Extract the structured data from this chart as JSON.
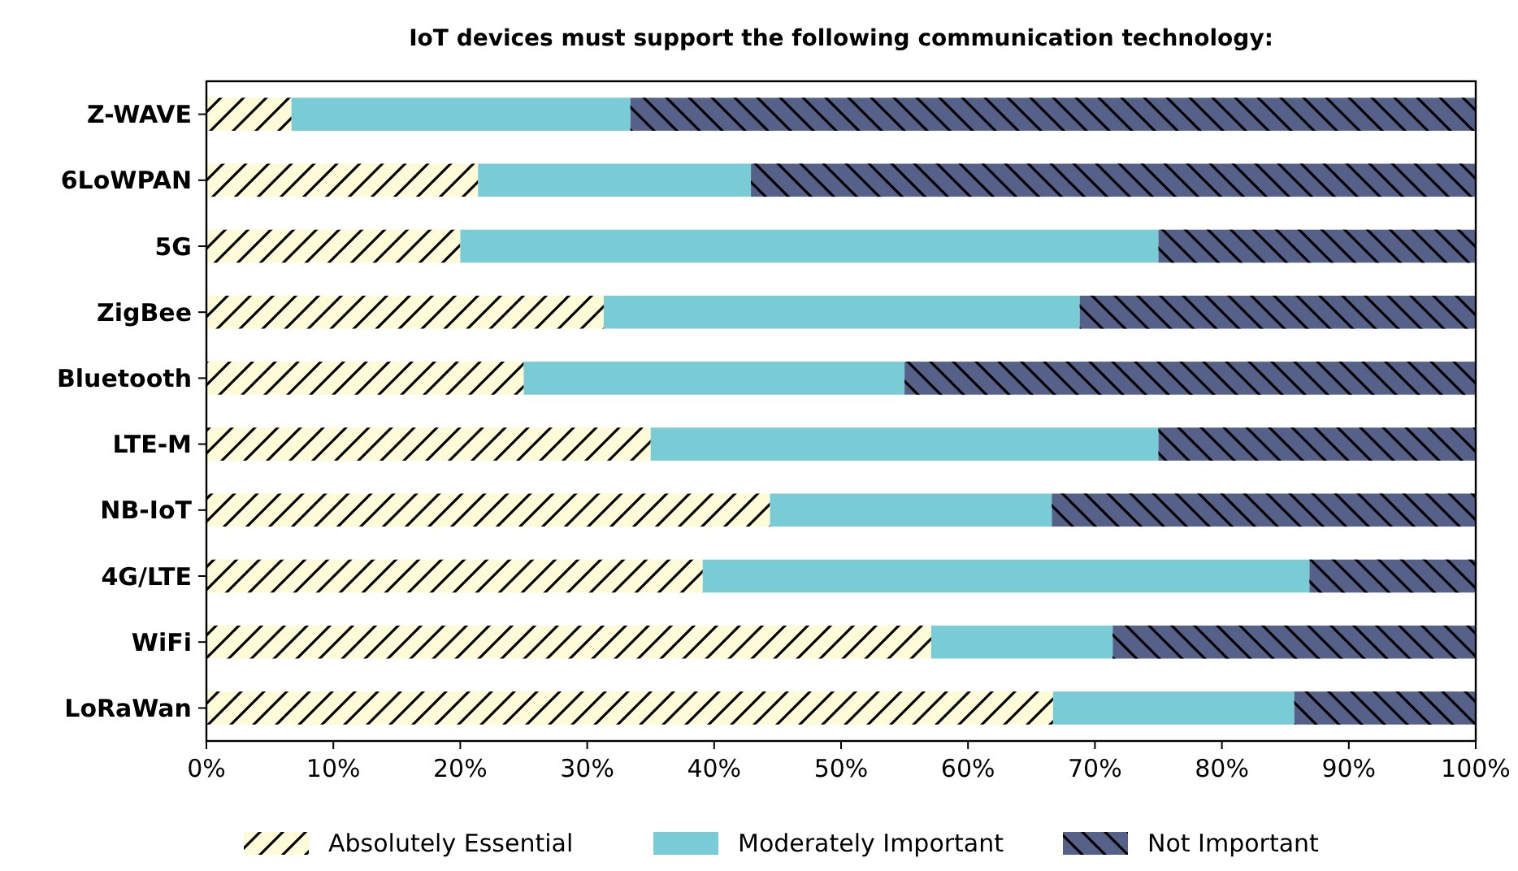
{
  "chart_data": {
    "type": "bar",
    "orientation": "horizontal",
    "stacked": true,
    "title": "IoT devices must support the following communication technology:",
    "categories": [
      "Z-WAVE",
      "6LoWPAN",
      "5G",
      "ZigBee",
      "Bluetooth",
      "LTE-M",
      "NB-IoT",
      "4G/LTE",
      "WiFi",
      "LoRaWan"
    ],
    "series": [
      {
        "name": "Absolutely Essential",
        "color": "#fdfbd8",
        "values": [
          6.7,
          21.4,
          20,
          31.3,
          25,
          35,
          44.4,
          39.1,
          57.1,
          66.7
        ]
      },
      {
        "name": "Moderately Important",
        "color": "#79ccd6",
        "values": [
          26.7,
          21.5,
          55,
          37.5,
          30,
          40,
          22.2,
          47.8,
          14.3,
          19.0
        ]
      },
      {
        "name": "Not Important",
        "color": "#556189",
        "values": [
          66.6,
          57.1,
          25,
          31.2,
          45,
          25,
          33.4,
          13.1,
          28.6,
          14.3
        ]
      }
    ],
    "xlim": [
      0,
      100
    ],
    "xticks": [
      {
        "value": 0,
        "label": "0%"
      },
      {
        "value": 10,
        "label": "10%"
      },
      {
        "value": 20,
        "label": "20%"
      },
      {
        "value": 30,
        "label": "30%"
      },
      {
        "value": 40,
        "label": "40%"
      },
      {
        "value": 50,
        "label": "50%"
      },
      {
        "value": 60,
        "label": "60%"
      },
      {
        "value": 70,
        "label": "70%"
      },
      {
        "value": 80,
        "label": "80%"
      },
      {
        "value": 90,
        "label": "90%"
      },
      {
        "value": 100,
        "label": "100%"
      }
    ],
    "legend": "bottom"
  }
}
